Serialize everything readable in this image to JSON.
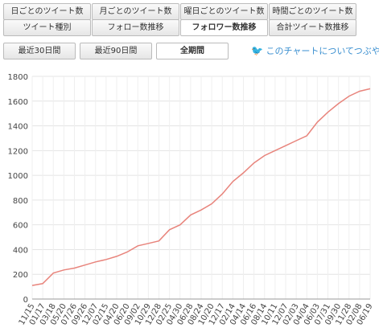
{
  "tabs": [
    [
      "日ごとのツイート数",
      "月ごとのツイート数",
      "曜日ごとのツイート数",
      "時間ごとのツイート数"
    ],
    [
      "ツイート種別",
      "フォロー数推移",
      "フォロワー数推移",
      "合計ツイート数推移"
    ]
  ],
  "range_buttons": [
    "最近30日間",
    "最近90日間",
    "全期間"
  ],
  "share_link": "このチャートについてつぶやく",
  "chart_data": {
    "type": "line",
    "categories": [
      "11/15",
      "01/17",
      "03/18",
      "05/20",
      "07/26",
      "09/26",
      "12/07",
      "02/15",
      "04/20",
      "06/20",
      "09/02",
      "10/29",
      "12/28",
      "02/25",
      "04/30",
      "06/28",
      "08/24",
      "10/20",
      "12/17",
      "02/14",
      "04/14",
      "06/16",
      "08/14",
      "10/11",
      "12/07",
      "02/03",
      "04/04",
      "06/03",
      "07/31",
      "09/30",
      "11/28",
      "02/08",
      "06/19"
    ],
    "values": [
      110,
      125,
      210,
      235,
      250,
      275,
      300,
      320,
      345,
      380,
      430,
      450,
      470,
      560,
      600,
      680,
      720,
      770,
      850,
      950,
      1020,
      1100,
      1160,
      1200,
      1240,
      1280,
      1320,
      1430,
      1510,
      1580,
      1640,
      1680,
      1700
    ],
    "color": "#e8847c",
    "ylim": [
      0,
      1800
    ],
    "yticks": [
      0,
      200,
      400,
      600,
      800,
      1000,
      1200,
      1400,
      1600,
      1800
    ],
    "grid": true
  }
}
